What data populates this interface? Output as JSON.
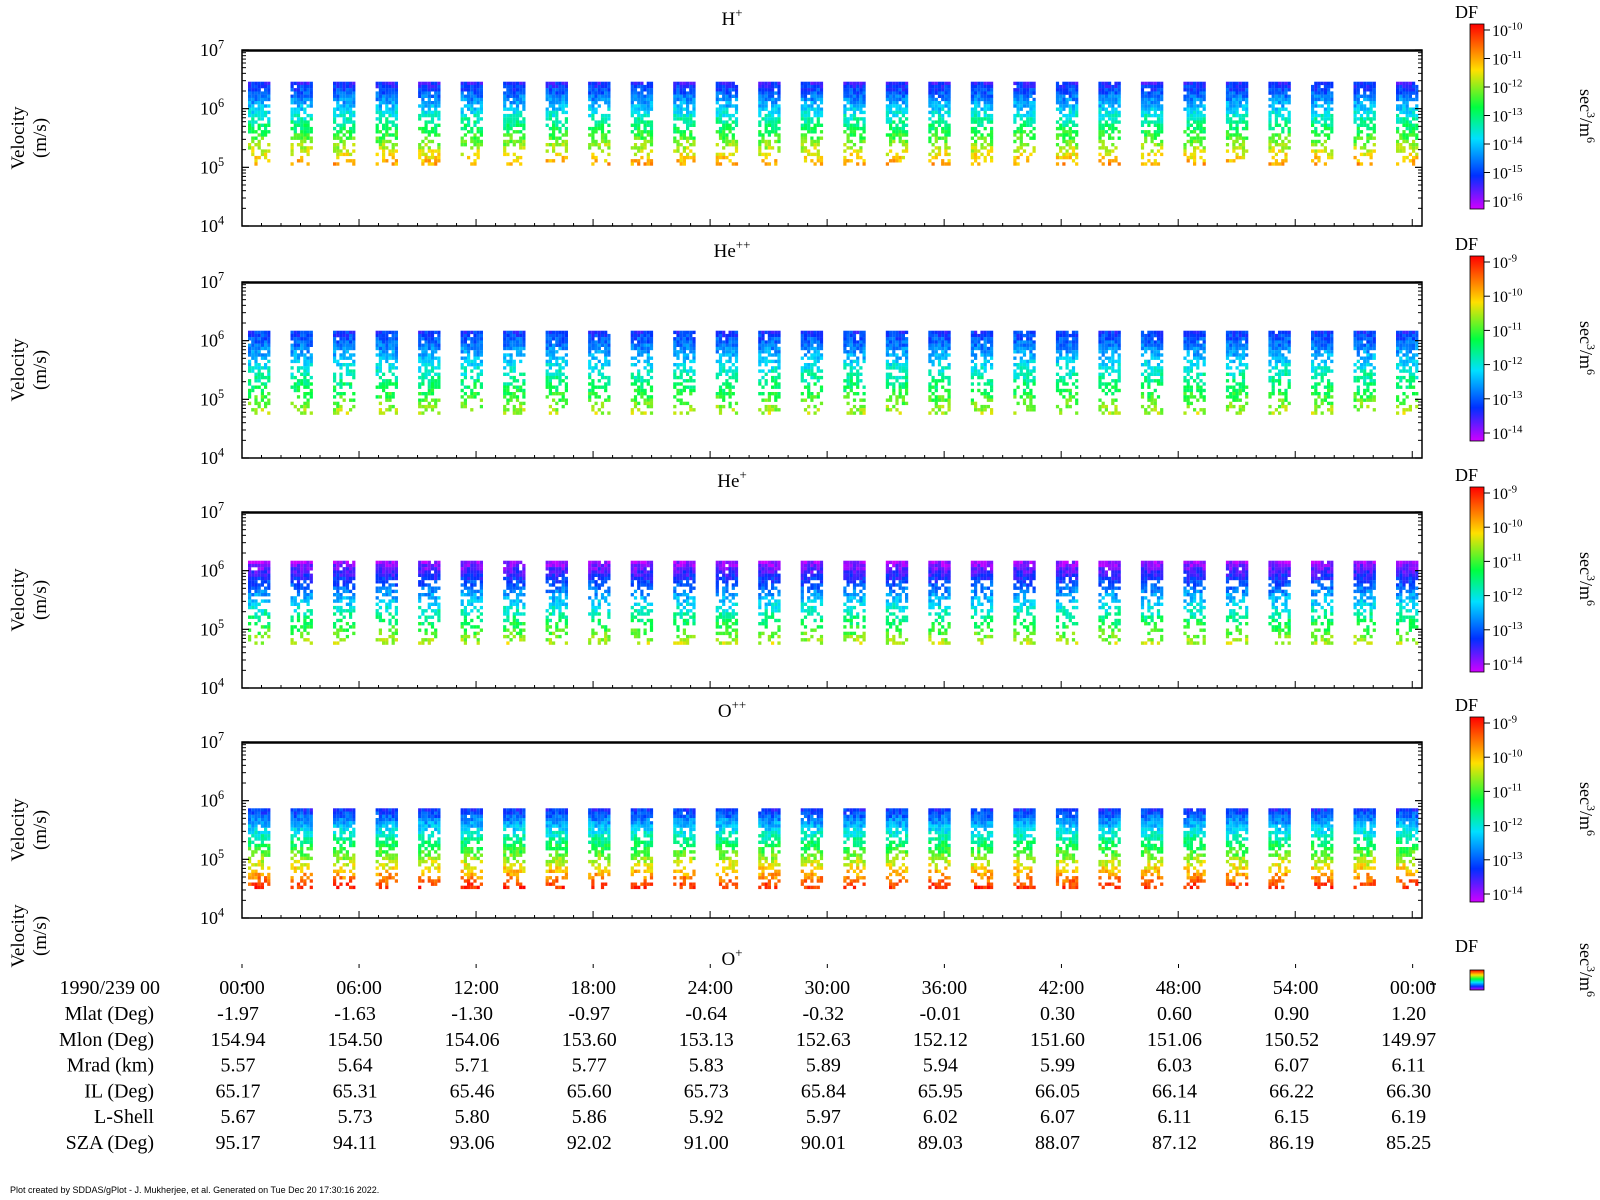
{
  "panels": [
    {
      "title": "H",
      "title_sup": "+",
      "ylabel_line1": "Velocity",
      "ylabel_line2": "(m/s)",
      "y_ticks": [
        {
          "base": "10",
          "exp": "7"
        },
        {
          "base": "10",
          "exp": "6"
        },
        {
          "base": "10",
          "exp": "5"
        },
        {
          "base": "10",
          "exp": "4"
        }
      ],
      "colorbar": {
        "label": "DF",
        "unit": "sec",
        "unit_sup": "3",
        "unit_tail": "/m",
        "unit_sup2": "6",
        "ticks": [
          {
            "base": "10",
            "exp": "-10"
          },
          {
            "base": "10",
            "exp": "-11"
          },
          {
            "base": "10",
            "exp": "-12"
          },
          {
            "base": "10",
            "exp": "-13"
          },
          {
            "base": "10",
            "exp": "-14"
          },
          {
            "base": "10",
            "exp": "-15"
          },
          {
            "base": "10",
            "exp": "-16"
          }
        ]
      }
    },
    {
      "title": "He",
      "title_sup": "++",
      "ylabel_line1": "Velocity",
      "ylabel_line2": "(m/s)",
      "y_ticks": [
        {
          "base": "10",
          "exp": "7"
        },
        {
          "base": "10",
          "exp": "6"
        },
        {
          "base": "10",
          "exp": "5"
        },
        {
          "base": "10",
          "exp": "4"
        }
      ],
      "colorbar": {
        "label": "DF",
        "unit": "sec",
        "unit_sup": "3",
        "unit_tail": "/m",
        "unit_sup2": "6",
        "ticks": [
          {
            "base": "10",
            "exp": "-9"
          },
          {
            "base": "10",
            "exp": "-10"
          },
          {
            "base": "10",
            "exp": "-11"
          },
          {
            "base": "10",
            "exp": "-12"
          },
          {
            "base": "10",
            "exp": "-13"
          },
          {
            "base": "10",
            "exp": "-14"
          }
        ]
      }
    },
    {
      "title": "He",
      "title_sup": "+",
      "ylabel_line1": "Velocity",
      "ylabel_line2": "(m/s)",
      "y_ticks": [
        {
          "base": "10",
          "exp": "7"
        },
        {
          "base": "10",
          "exp": "6"
        },
        {
          "base": "10",
          "exp": "5"
        },
        {
          "base": "10",
          "exp": "4"
        }
      ],
      "colorbar": {
        "label": "DF",
        "unit": "sec",
        "unit_sup": "3",
        "unit_tail": "/m",
        "unit_sup2": "6",
        "ticks": [
          {
            "base": "10",
            "exp": "-9"
          },
          {
            "base": "10",
            "exp": "-10"
          },
          {
            "base": "10",
            "exp": "-11"
          },
          {
            "base": "10",
            "exp": "-12"
          },
          {
            "base": "10",
            "exp": "-13"
          },
          {
            "base": "10",
            "exp": "-14"
          }
        ]
      }
    },
    {
      "title": "O",
      "title_sup": "++",
      "ylabel_line1": "Velocity",
      "ylabel_line2": "(m/s)",
      "y_ticks": [
        {
          "base": "10",
          "exp": "7"
        },
        {
          "base": "10",
          "exp": "6"
        },
        {
          "base": "10",
          "exp": "5"
        },
        {
          "base": "10",
          "exp": "4"
        }
      ],
      "colorbar": {
        "label": "DF",
        "unit": "sec",
        "unit_sup": "3",
        "unit_tail": "/m",
        "unit_sup2": "6",
        "ticks": [
          {
            "base": "10",
            "exp": "-9"
          },
          {
            "base": "10",
            "exp": "-10"
          },
          {
            "base": "10",
            "exp": "-11"
          },
          {
            "base": "10",
            "exp": "-12"
          },
          {
            "base": "10",
            "exp": "-13"
          },
          {
            "base": "10",
            "exp": "-14"
          }
        ]
      }
    }
  ],
  "collapsed_panel": {
    "title": "O",
    "title_sup": "+",
    "ylabel_line1": "Velocity",
    "ylabel_line2": "(m/s)",
    "colorbar_label": "DF",
    "colorbar_unit": "sec",
    "colorbar_unit_sup": "3",
    "colorbar_unit_tail": "/m",
    "colorbar_unit_sup2": "6"
  },
  "ephemeris": {
    "date_label": "1990/239 00",
    "time_ticks": [
      "00:00",
      "06:00",
      "12:00",
      "18:00",
      "24:00",
      "30:00",
      "36:00",
      "42:00",
      "48:00",
      "54:00",
      "00:00"
    ],
    "rows": [
      {
        "label": "Mlat (Deg)",
        "values": [
          "-1.97",
          "-1.63",
          "-1.30",
          "-0.97",
          "-0.64",
          "-0.32",
          "-0.01",
          "0.30",
          "0.60",
          "0.90",
          "1.20"
        ]
      },
      {
        "label": "Mlon (Deg)",
        "values": [
          "154.94",
          "154.50",
          "154.06",
          "153.60",
          "153.13",
          "152.63",
          "152.12",
          "151.60",
          "151.06",
          "150.52",
          "149.97"
        ]
      },
      {
        "label": "Mrad (km)",
        "values": [
          "5.57",
          "5.64",
          "5.71",
          "5.77",
          "5.83",
          "5.89",
          "5.94",
          "5.99",
          "6.03",
          "6.07",
          "6.11"
        ]
      },
      {
        "label": "IL (Deg)",
        "values": [
          "65.17",
          "65.31",
          "65.46",
          "65.60",
          "65.73",
          "65.84",
          "65.95",
          "66.05",
          "66.14",
          "66.22",
          "66.30"
        ]
      },
      {
        "label": "L-Shell",
        "values": [
          "5.67",
          "5.73",
          "5.80",
          "5.86",
          "5.92",
          "5.97",
          "6.02",
          "6.07",
          "6.11",
          "6.15",
          "6.19"
        ]
      },
      {
        "label": "SZA (Deg)",
        "values": [
          "95.17",
          "94.11",
          "93.06",
          "92.02",
          "91.00",
          "90.01",
          "89.03",
          "88.07",
          "87.12",
          "86.19",
          "85.25"
        ]
      }
    ]
  },
  "footer": "Plot created by SDDAS/gPlot - J. Mukherjee, et al.  Generated on Tue Dec 20 17:30:16 2022.",
  "chart_data": {
    "type": "heatmap",
    "description_series": [
      {
        "name": "H+",
        "velocity_range_m_s": [
          120000,
          3000000
        ],
        "df_range": [
          1e-16,
          1e-10
        ]
      },
      {
        "name": "He++",
        "velocity_range_m_s": [
          55000,
          1500000
        ],
        "df_range": [
          1e-14,
          1e-09
        ]
      },
      {
        "name": "He+",
        "velocity_range_m_s": [
          60000,
          1500000
        ],
        "df_range": [
          1e-14,
          1e-09
        ]
      },
      {
        "name": "O'++",
        "velocity_range_m_s": [
          30000,
          750000
        ],
        "df_range": [
          1e-14,
          1e-09
        ]
      }
    ],
    "x_ticks": [
      "00:00",
      "06:00",
      "12:00",
      "18:00",
      "24:00",
      "30:00",
      "36:00",
      "42:00",
      "48:00",
      "54:00",
      "00:00"
    ],
    "ylim": [
      10000,
      10000000
    ],
    "y_scale": "log",
    "bursts_per_panel": 28
  }
}
